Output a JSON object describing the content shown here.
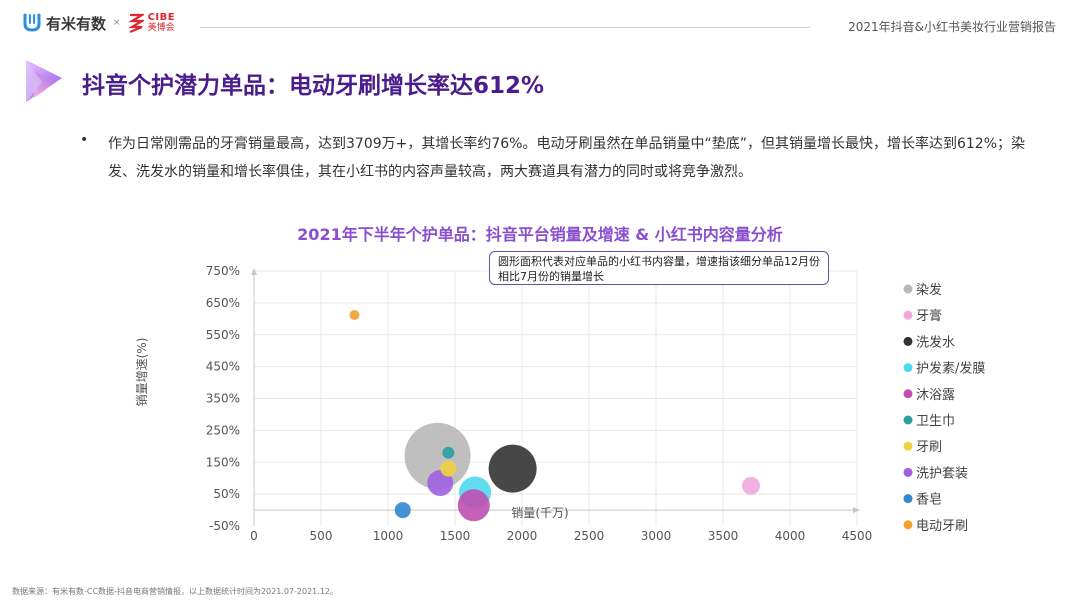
{
  "header": {
    "logo1_text": "有米有数",
    "logo_separator": "×",
    "logo2_top": "CIBE",
    "logo2_bottom": "美博会",
    "report_title": "2021年抖音&小红书美妆行业营销报告"
  },
  "page": {
    "title": "抖音个护潜力单品：电动牙刷增长率达612%",
    "bullet": "作为日常刚需品的牙膏销量最高，达到3709万+，其增长率约76%。电动牙刷虽然在单品销量中“垫底”，但其销量增长最快，增长率达到612%；染发、洗发水的销量和增长率俱佳，其在小红书的内容声量较高，两大赛道具有潜力的同时或将竞争激烈。",
    "footnote": "数据来源：有米有数-CC数据-抖音电商营销情报，以上数据统计时间为2021.07-2021.12。"
  },
  "chart_data": {
    "type": "scatter",
    "title": "2021年下半年个护单品：抖音平台销量及增速 & 小红书内容量分析",
    "annotation": "圆形面积代表对应单品的小红书内容量，增速指该细分单品12月份相比7月份的销量增长",
    "xlabel": "销量(千万)",
    "ylabel": "销量增速(%)",
    "xlim": [
      0,
      4500
    ],
    "ylim": [
      -50,
      750
    ],
    "x_ticks": [
      "0",
      "500",
      "1000",
      "1500",
      "2000",
      "2500",
      "3000",
      "3500",
      "4000",
      "4500"
    ],
    "y_ticks": [
      "-50%",
      "50%",
      "150%",
      "250%",
      "350%",
      "450%",
      "550%",
      "650%",
      "750%"
    ],
    "legend_position": "right",
    "series": [
      {
        "name": "染发",
        "x": 1370,
        "y": 170,
        "size": 33,
        "color": "#b8b8b8"
      },
      {
        "name": "牙膏",
        "x": 3709,
        "y": 76,
        "size": 9,
        "color": "#f0a8dc"
      },
      {
        "name": "洗发水",
        "x": 1930,
        "y": 130,
        "size": 24,
        "color": "#333333"
      },
      {
        "name": "护发素/发膜",
        "x": 1650,
        "y": 55,
        "size": 16,
        "color": "#4fd8f0"
      },
      {
        "name": "沐浴露",
        "x": 1640,
        "y": 15,
        "size": 16,
        "color": "#c050b0"
      },
      {
        "name": "卫生巾",
        "x": 1450,
        "y": 180,
        "size": 6,
        "color": "#2aa0a0"
      },
      {
        "name": "牙刷",
        "x": 1450,
        "y": 130,
        "size": 8,
        "color": "#f0d040"
      },
      {
        "name": "洗护套装",
        "x": 1390,
        "y": 85,
        "size": 13,
        "color": "#a060e0"
      },
      {
        "name": "香皂",
        "x": 1110,
        "y": 0,
        "size": 8,
        "color": "#3088d0"
      },
      {
        "name": "电动牙刷",
        "x": 750,
        "y": 612,
        "size": 5,
        "color": "#f0a030"
      }
    ]
  }
}
